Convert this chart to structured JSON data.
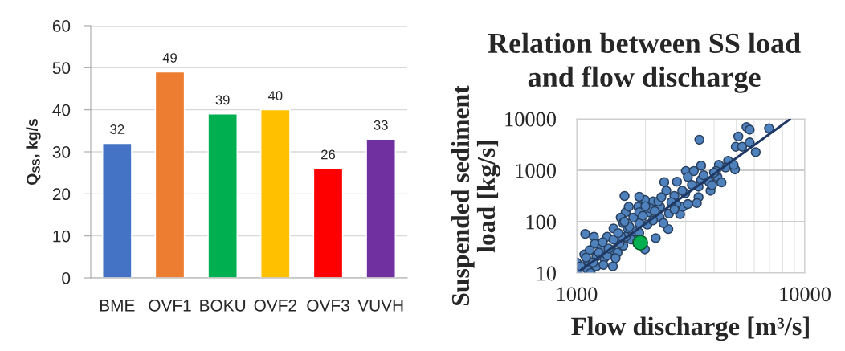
{
  "chart_data": [
    {
      "type": "bar",
      "categories": [
        "BME",
        "OVF1",
        "BOKU",
        "OVF2",
        "OVF3",
        "VUVH"
      ],
      "values": [
        32,
        49,
        39,
        40,
        26,
        33
      ],
      "colors": [
        "#4472c4",
        "#ed7d31",
        "#00b050",
        "#ffc000",
        "#ff0000",
        "#7030a0"
      ],
      "ylabel": "Q$_{SS}$, kg/s",
      "ylim": [
        0,
        60
      ],
      "yticks": [
        0,
        10,
        20,
        30,
        40,
        50,
        60
      ],
      "grid": "y",
      "data_labels": true
    },
    {
      "type": "scatter",
      "title": "Relation between SS load\nand flow discharge",
      "xlabel": "Flow discharge [m³/s]",
      "ylabel": "Suspended sediment\nload [kg/s]",
      "log": "xy",
      "xlim": [
        1000,
        10000
      ],
      "ylim": [
        10,
        10000
      ],
      "xticks": [
        1000,
        10000
      ],
      "yticks": [
        10,
        100,
        1000,
        10000
      ],
      "grid": true,
      "marker": "circle",
      "series": [
        {
          "color": "#4f81bd",
          "x": [
            5550,
            5730,
            6970,
            5110,
            3450,
            4980,
            5310,
            5730,
            6090,
            4610,
            4490,
            4940,
            4200,
            4140,
            4310,
            3810,
            3860,
            3510,
            3010,
            3260,
            3070,
            3420,
            3420,
            3360,
            2840,
            2920,
            2420,
            2470,
            2680,
            2320,
            2160,
            1990,
            1880,
            1620,
            2070,
            2310,
            2540,
            2520,
            2220,
            2040,
            1880,
            1770,
            1640,
            1560,
            1600,
            1450,
            1360,
            1190,
            1090,
            1200,
            1080,
            1000,
            1010,
            1110,
            1150,
            1220,
            1320,
            1420,
            1510,
            1600,
            1730,
            1990,
            1670,
            1780,
            1440,
            1310,
            1220,
            1120,
            1040,
            1540,
            1480,
            1840,
            2280,
            2730,
            3070,
            2990,
            3510,
            4080,
            3920,
            4870,
            2680,
            2100,
            1860,
            1690,
            1880,
            2160,
            2400,
            1880,
            1640,
            1290,
            1140,
            1360,
            1250,
            1380,
            1560,
            1700,
            1950,
            2200,
            2600,
            2900,
            3200,
            3600,
            4000,
            1100,
            1180,
            1300,
            1450,
            1520,
            1620,
            2000,
            2350,
            2750
          ],
          "values": [
            6950,
            6160,
            6540,
            4550,
            3930,
            2870,
            2870,
            3480,
            2250,
            1530,
            1130,
            1040,
            1270,
            740,
            580,
            590,
            400,
            1230,
            965,
            965,
            740,
            480,
            300,
            230,
            140,
            195,
            590,
            400,
            316,
            195,
            248,
            264,
            305,
            316,
            153,
            120,
            144,
            72,
            48,
            88,
            94,
            120,
            153,
            120,
            94,
            74,
            51,
            51,
            58,
            37,
            23,
            16,
            11,
            12,
            10,
            13.5,
            19.5,
            28,
            25,
            34,
            45,
            29,
            74,
            65,
            13.5,
            14.4,
            21,
            17,
            13.5,
            38,
            19.5,
            40,
            248,
            220,
            220,
            357,
            654,
            965,
            514,
            1270,
            173,
            183,
            195,
            195,
            153,
            106,
            94,
            61,
            51,
            32,
            28,
            22,
            25,
            30,
            52,
            80,
            130,
            160,
            240,
            400,
            520,
            800,
            900,
            20,
            16,
            40,
            45,
            60,
            100,
            200,
            300,
            600
          ]
        },
        {
          "type": "line",
          "color": "#1f3864",
          "marker": "none",
          "line_style": "solid",
          "x": [
            1040,
            8600
          ],
          "values": [
            11.3,
            9800
          ]
        },
        {
          "color": "#00b050",
          "x": [
            1900
          ],
          "values": [
            39
          ]
        }
      ]
    }
  ]
}
